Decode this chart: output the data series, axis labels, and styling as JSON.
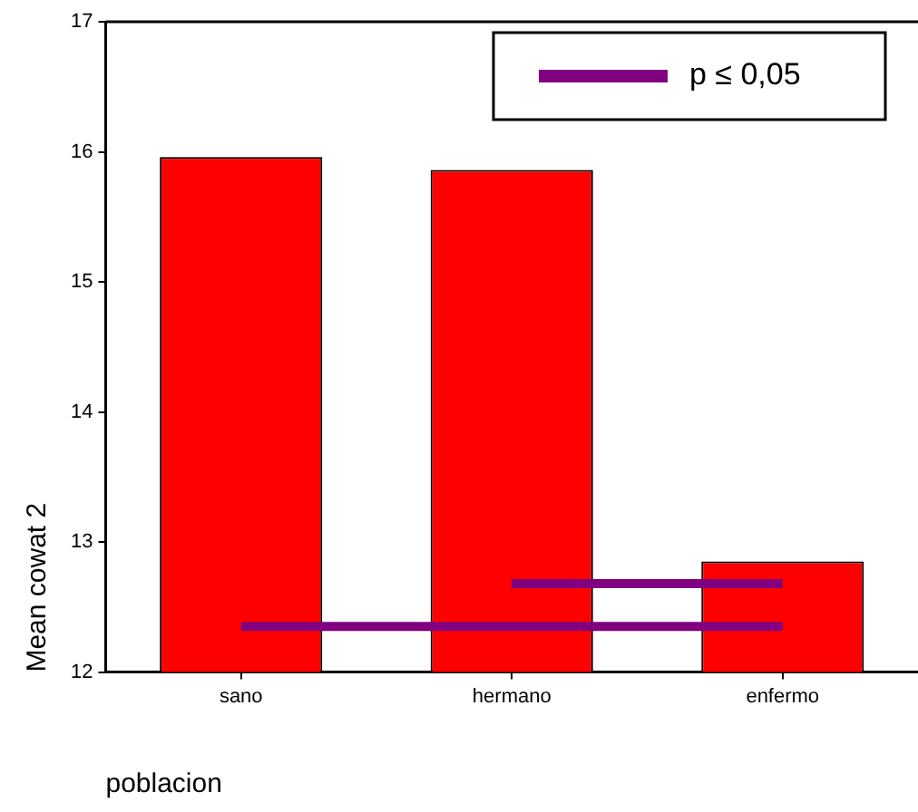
{
  "chart_data": {
    "type": "bar",
    "categories": [
      "sano",
      "hermano",
      "enfermo"
    ],
    "ylabel": "Mean cowat 2",
    "xlabel": "poblacion",
    "ylim": [
      12,
      17
    ],
    "yticks": [
      12,
      13,
      14,
      15,
      16,
      17
    ],
    "grid": false,
    "legend": "top right",
    "marker": "none",
    "line_style": "solid",
    "series": [
      {
        "color": "#ff0000",
        "values": [
          15.96,
          15.86,
          12.85
        ]
      },
      {
        "type": "line",
        "name": "p ≤ 0,05",
        "color": "#800080",
        "x": [
          "sano",
          "enfermo"
        ],
        "values": [
          12.35,
          12.35
        ]
      },
      {
        "type": "line",
        "color": "#800080",
        "x": [
          "hermano",
          "enfermo"
        ],
        "values": [
          12.68,
          12.68
        ]
      }
    ]
  }
}
